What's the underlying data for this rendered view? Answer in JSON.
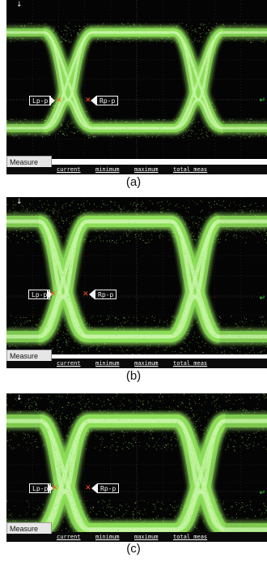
{
  "panels": [
    {
      "caption": "(a)",
      "left_marker": "Lp-p",
      "right_marker": "Rp-p",
      "tab": "Measure",
      "columns": [
        "current",
        "minimum",
        "maximum",
        "total meas"
      ]
    },
    {
      "caption": "(b)",
      "left_marker": "Lp-p",
      "right_marker": "Rp-p",
      "tab": "Measure",
      "columns": [
        "current",
        "minimum",
        "maximum",
        "total meas"
      ]
    },
    {
      "caption": "(c)",
      "left_marker": "Lp-p",
      "right_marker": "Rp-p",
      "tab": "Measure",
      "columns": [
        "current",
        "minimum",
        "maximum",
        "total meas"
      ]
    }
  ],
  "colors": {
    "trace": "#8ee05a",
    "trace_core": "#c8f5a8",
    "screen": "#040404",
    "cross": "#ff4a1a"
  },
  "icons": {
    "top": "down-arrow-icon",
    "right": "ground-marker-icon"
  }
}
